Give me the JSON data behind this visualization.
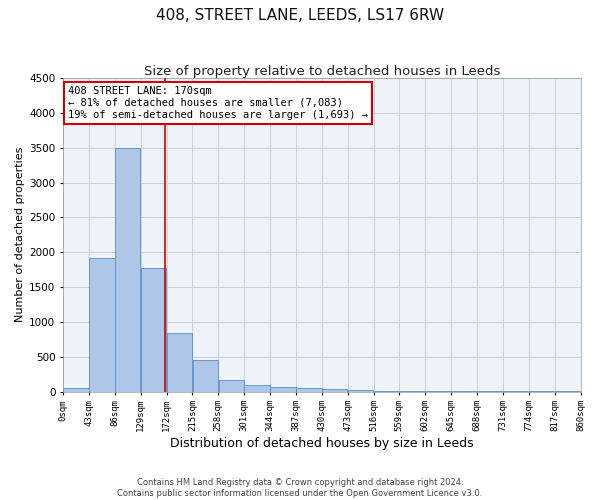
{
  "title": "408, STREET LANE, LEEDS, LS17 6RW",
  "subtitle": "Size of property relative to detached houses in Leeds",
  "xlabel": "Distribution of detached houses by size in Leeds",
  "ylabel": "Number of detached properties",
  "footer_line1": "Contains HM Land Registry data © Crown copyright and database right 2024.",
  "footer_line2": "Contains public sector information licensed under the Open Government Licence v3.0.",
  "annotation_title": "408 STREET LANE: 170sqm",
  "annotation_line2": "← 81% of detached houses are smaller (7,083)",
  "annotation_line3": "19% of semi-detached houses are larger (1,693) →",
  "bar_edges": [
    0,
    43,
    86,
    129,
    172,
    215,
    258,
    301,
    344,
    387,
    430,
    473,
    516,
    559,
    602,
    645,
    688,
    731,
    774,
    817,
    860
  ],
  "bar_heights": [
    50,
    1920,
    3490,
    1770,
    840,
    450,
    160,
    95,
    70,
    50,
    30,
    25,
    15,
    10,
    8,
    5,
    4,
    3,
    2,
    1
  ],
  "bar_color": "#aec6e8",
  "bar_edge_color": "#5a8fc2",
  "vline_x": 170,
  "vline_color": "#cc0000",
  "ylim": [
    0,
    4500
  ],
  "yticks": [
    0,
    500,
    1000,
    1500,
    2000,
    2500,
    3000,
    3500,
    4000,
    4500
  ],
  "bg_color": "#eef2f9",
  "grid_color": "#c8d0df",
  "annotation_box_color": "#cc0000",
  "title_fontsize": 11,
  "subtitle_fontsize": 9.5,
  "xlabel_fontsize": 9,
  "ylabel_fontsize": 8,
  "tick_labels": [
    "0sqm",
    "43sqm",
    "86sqm",
    "129sqm",
    "172sqm",
    "215sqm",
    "258sqm",
    "301sqm",
    "344sqm",
    "387sqm",
    "430sqm",
    "473sqm",
    "516sqm",
    "559sqm",
    "602sqm",
    "645sqm",
    "688sqm",
    "731sqm",
    "774sqm",
    "817sqm",
    "860sqm"
  ]
}
